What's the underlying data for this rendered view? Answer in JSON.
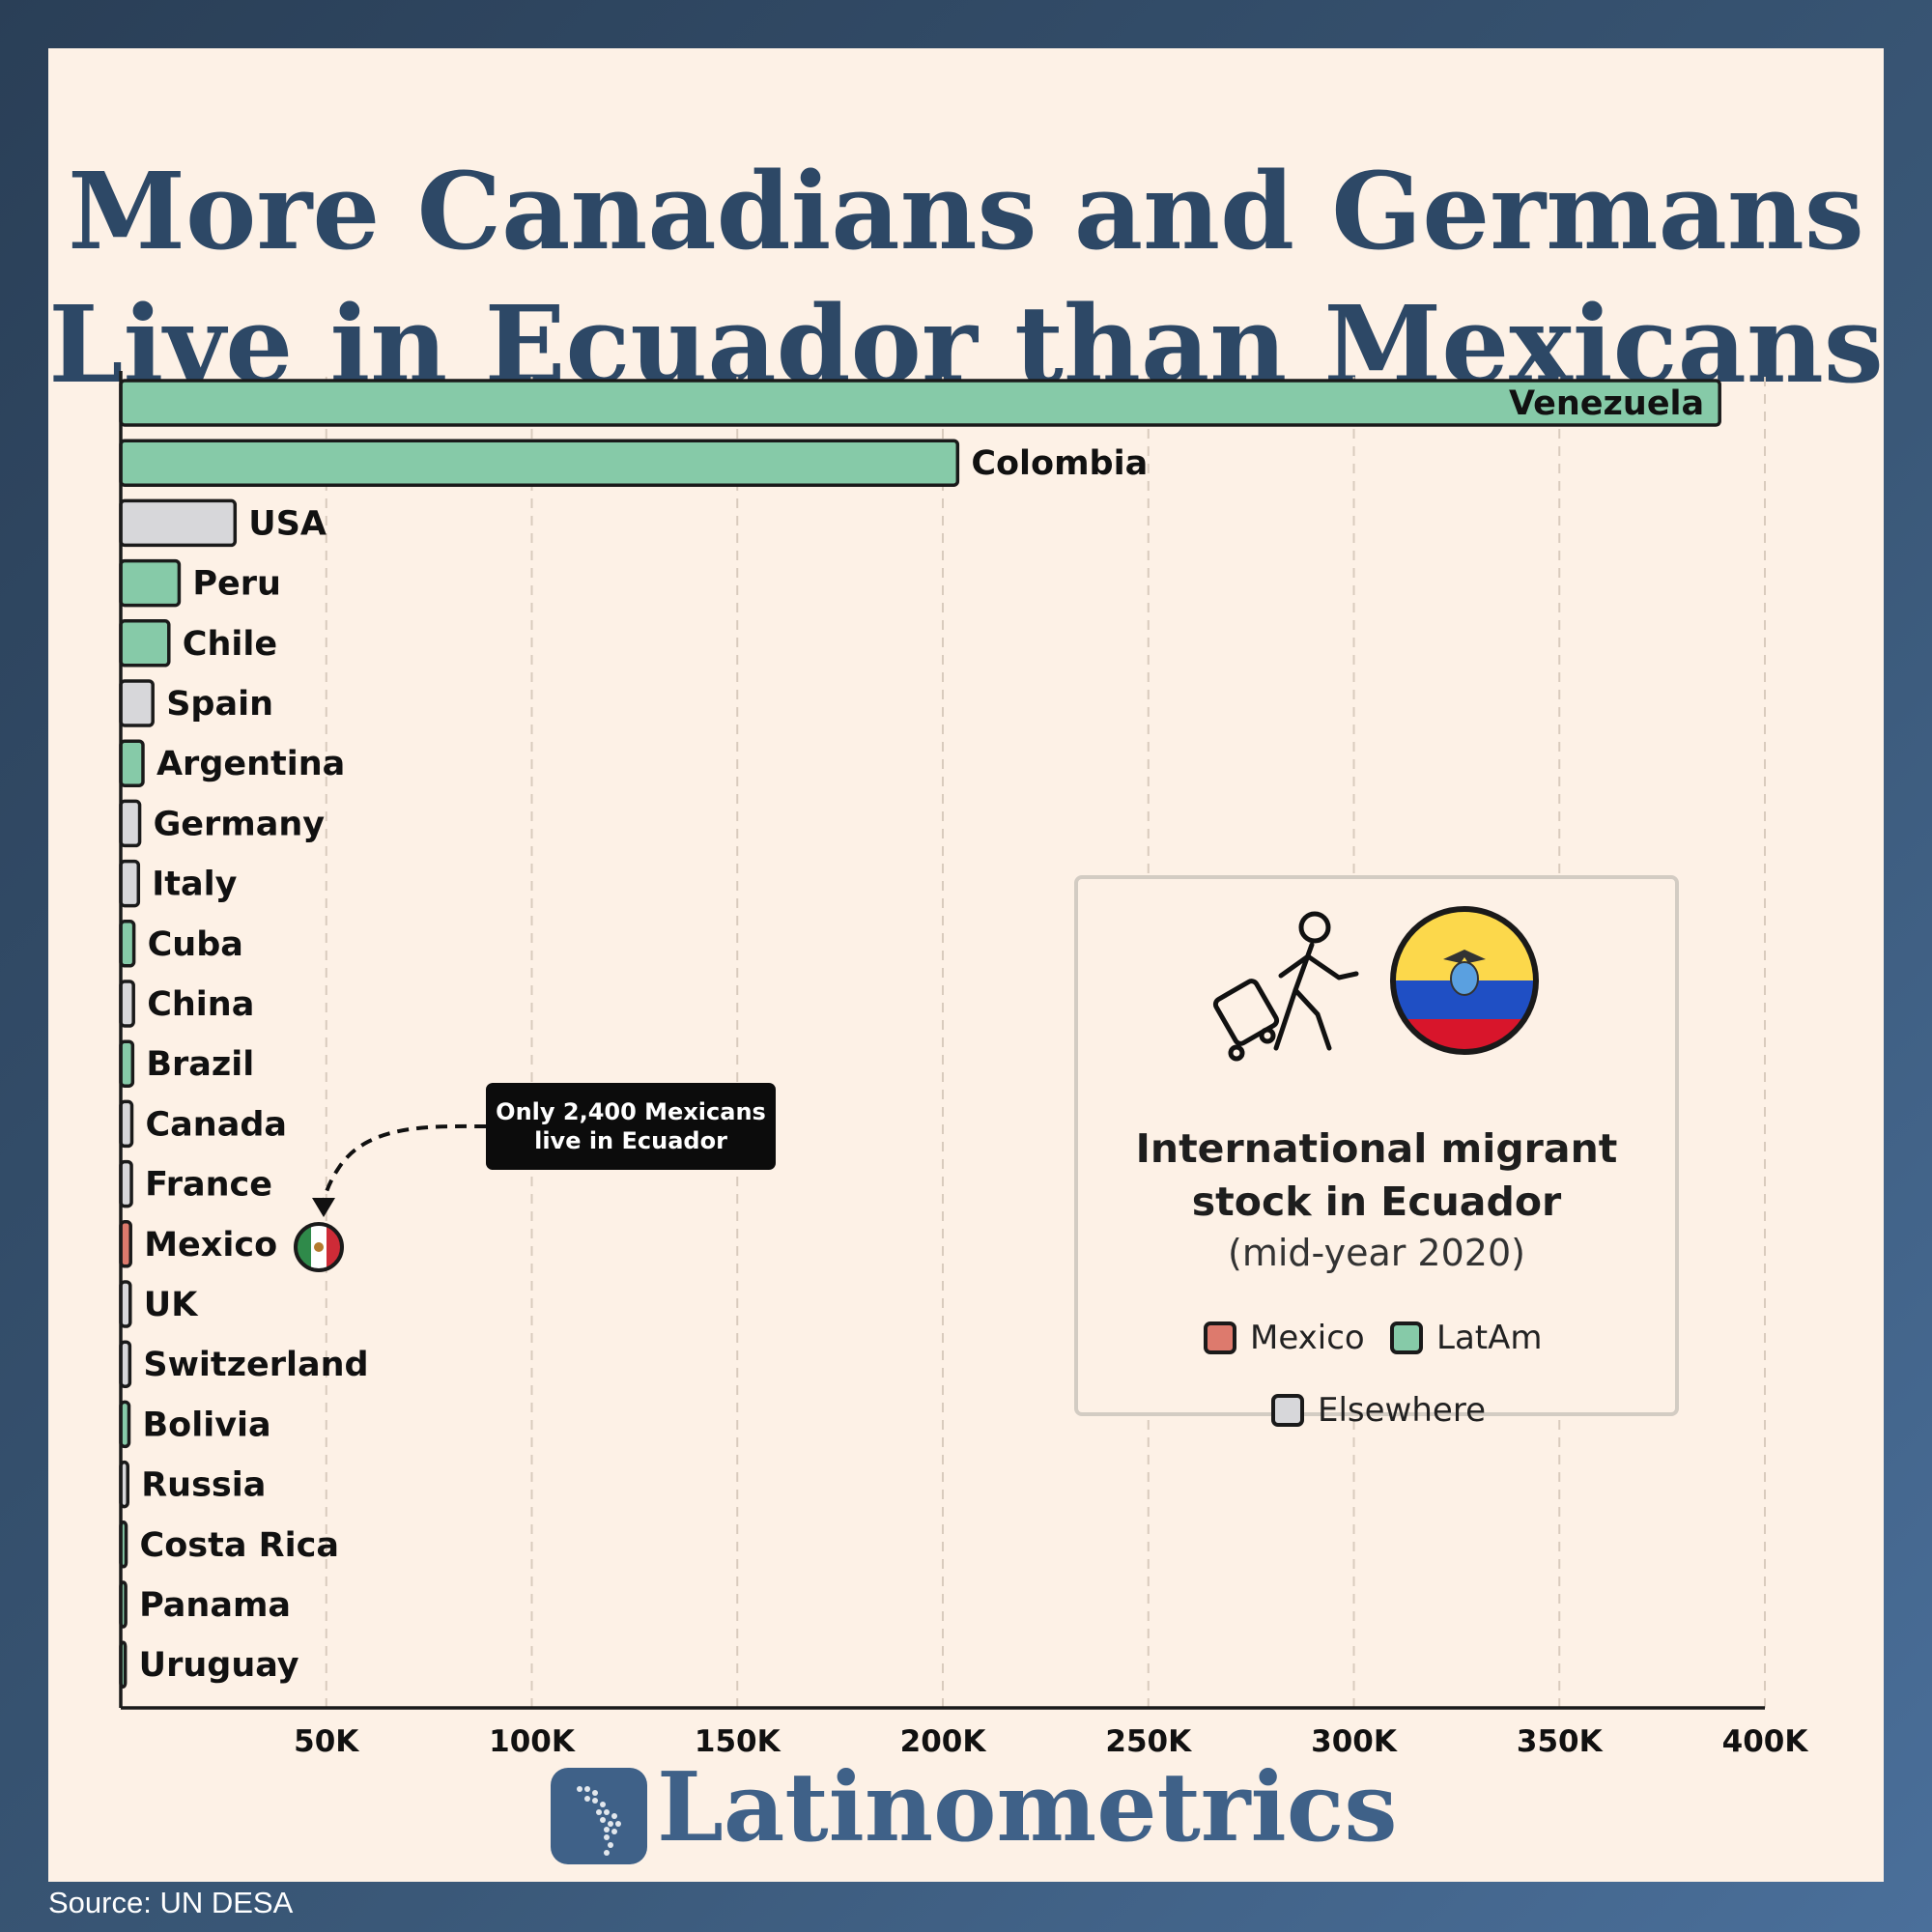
{
  "title_line1": "More Canadians and Germans",
  "title_line2": "Live in Ecuador than Mexicans",
  "annotation": {
    "line1": "Only 2,400 Mexicans",
    "line2": "live in Ecuador"
  },
  "legend": {
    "title_line1": "International migrant",
    "title_line2": "stock in Ecuador",
    "subtitle": "(mid-year 2020)",
    "items": [
      {
        "label": "Mexico",
        "color": "#dd7a6d"
      },
      {
        "label": "LatAm",
        "color": "#86caa8"
      },
      {
        "label": "Elsewhere",
        "color": "#d7d7da"
      }
    ]
  },
  "brand": "Latinometrics",
  "source": "Source: UN DESA",
  "colors": {
    "mexico": "#dd7a6d",
    "latam": "#86caa8",
    "elsewhere": "#d7d7da",
    "title": "#2d4866",
    "brand": "#3f6188"
  },
  "icons": [
    "traveler-with-luggage-icon",
    "ecuador-flag-icon",
    "mexico-flag-icon",
    "latin-america-map-icon"
  ],
  "chart_data": {
    "type": "bar",
    "orientation": "horizontal",
    "categories": [
      "Venezuela",
      "Colombia",
      "USA",
      "Peru",
      "Chile",
      "Spain",
      "Argentina",
      "Germany",
      "Italy",
      "Cuba",
      "China",
      "Brazil",
      "Canada",
      "France",
      "Mexico",
      "UK",
      "Switzerland",
      "Bolivia",
      "Russia",
      "Costa Rica",
      "Panama",
      "Uruguay"
    ],
    "values": [
      389000,
      203600,
      27800,
      14200,
      11700,
      7800,
      5400,
      4600,
      4300,
      3200,
      3100,
      2900,
      2700,
      2600,
      2400,
      2300,
      2200,
      2000,
      1700,
      1300,
      1200,
      1100
    ],
    "groups": [
      "latam",
      "latam",
      "elsewhere",
      "latam",
      "latam",
      "elsewhere",
      "latam",
      "elsewhere",
      "elsewhere",
      "latam",
      "elsewhere",
      "latam",
      "elsewhere",
      "elsewhere",
      "mexico",
      "elsewhere",
      "elsewhere",
      "latam",
      "elsewhere",
      "latam",
      "latam",
      "latam"
    ],
    "xticks": [
      50000,
      100000,
      150000,
      200000,
      250000,
      300000,
      350000,
      400000
    ],
    "xtick_labels": [
      "50K",
      "100K",
      "150K",
      "200K",
      "250K",
      "300K",
      "350K",
      "400K"
    ],
    "xlim": [
      0,
      400000
    ],
    "grid": "vertical dashed"
  }
}
